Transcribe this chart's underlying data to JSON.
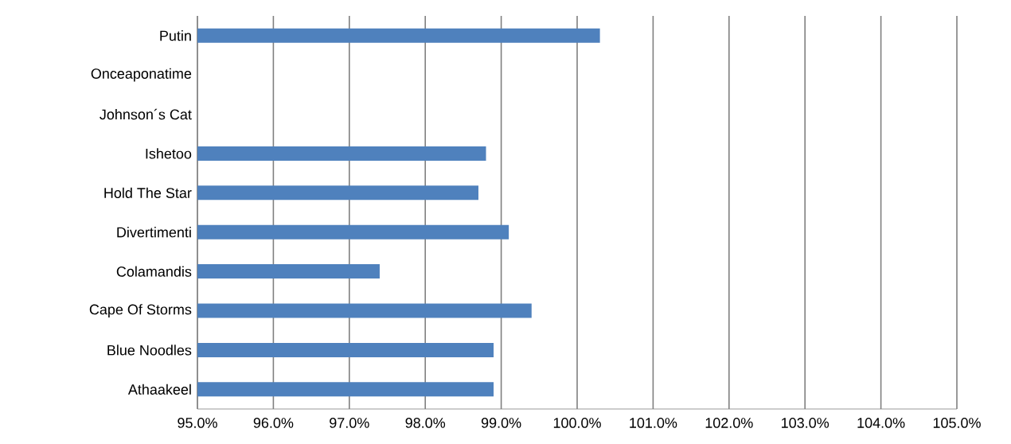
{
  "chart_data": {
    "type": "bar",
    "orientation": "horizontal",
    "categories": [
      "Putin",
      "Onceaponatime",
      "Johnson´s Cat",
      "Ishetoo",
      "Hold The Star",
      "Divertimenti",
      "Colamandis",
      "Cape Of Storms",
      "Blue Noodles",
      "Athaakeel"
    ],
    "values": [
      100.3,
      null,
      null,
      98.8,
      98.7,
      99.1,
      97.4,
      99.4,
      98.9,
      98.9
    ],
    "color": "#4f81bd",
    "xlim": [
      95,
      105
    ],
    "xticks": [
      {
        "value": 95,
        "label": "95.0%"
      },
      {
        "value": 96,
        "label": "96.0%"
      },
      {
        "value": 97,
        "label": "97.0%"
      },
      {
        "value": 98,
        "label": "98.0%"
      },
      {
        "value": 99,
        "label": "99.0%"
      },
      {
        "value": 100,
        "label": "100.0%"
      },
      {
        "value": 101,
        "label": "101.0%"
      },
      {
        "value": 102,
        "label": "102.0%"
      },
      {
        "value": 103,
        "label": "103.0%"
      },
      {
        "value": 104,
        "label": "104.0%"
      },
      {
        "value": 105,
        "label": "105.0%"
      }
    ],
    "grid": "x"
  }
}
